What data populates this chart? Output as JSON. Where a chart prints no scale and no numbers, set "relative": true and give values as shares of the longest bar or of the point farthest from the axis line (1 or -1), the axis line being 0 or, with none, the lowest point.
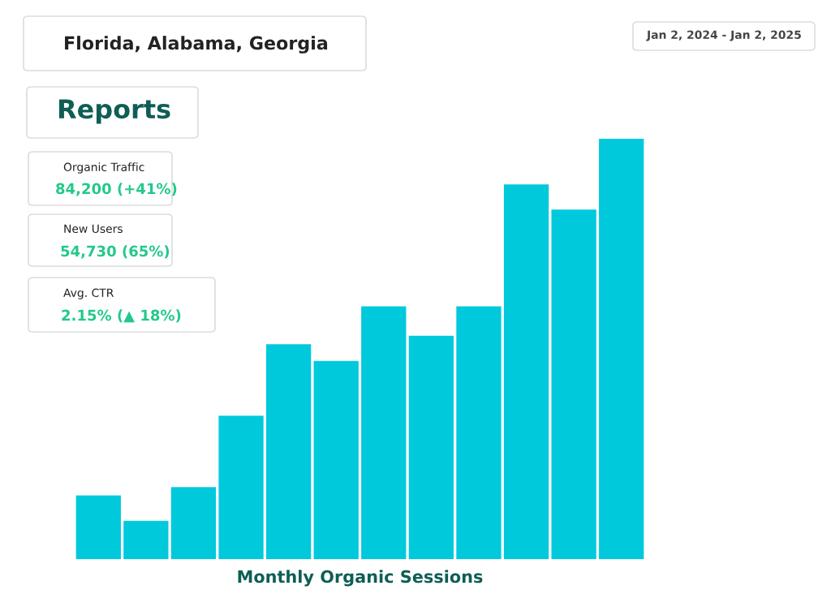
{
  "chart_data": {
    "type": "bar",
    "relative": true,
    "xlabel": "Monthly Organic Sessions",
    "categories": [
      null,
      null,
      null,
      null,
      null,
      null,
      null,
      null,
      null,
      null,
      null,
      null
    ],
    "values": [
      0.15,
      0.09,
      0.17,
      0.34,
      0.51,
      0.47,
      0.6,
      0.53,
      0.6,
      0.89,
      0.83,
      1.0
    ],
    "color": "#00c9dc",
    "grid": false,
    "legend": false,
    "annotations": [
      "Florida, Alabama, Georgia",
      "Jan 2, 2024 - Jan 2, 2025",
      "Reports",
      "Organic Traffic",
      "84,200 (+41%)",
      "New Users",
      "54,730 (65%)",
      "Avg. CTR",
      "2.15% (▲ 18%)"
    ]
  }
}
